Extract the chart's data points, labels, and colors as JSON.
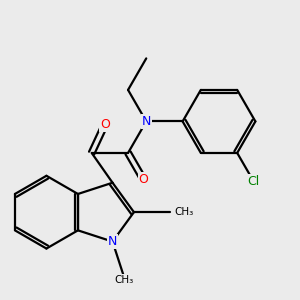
{
  "background_color": "#ebebeb",
  "line_color": "#000000",
  "bond_width": 1.6,
  "atom_colors": {
    "N": "#0000ff",
    "O": "#ff0000",
    "Cl": "#008000",
    "C": "#000000"
  },
  "figsize": [
    3.0,
    3.0
  ],
  "dpi": 100
}
